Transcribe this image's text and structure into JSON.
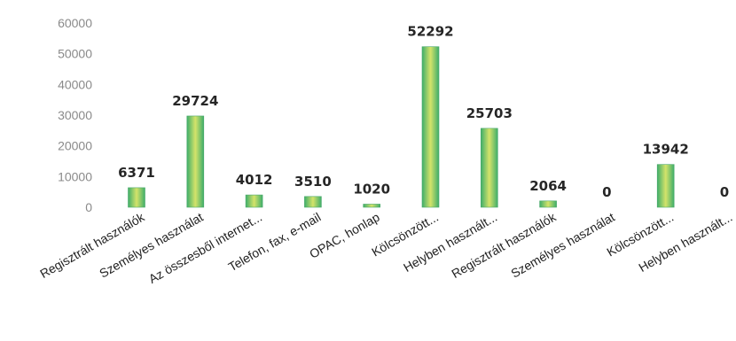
{
  "chart_data": {
    "type": "bar",
    "title": "",
    "xlabel": "",
    "ylabel": "",
    "ylim": [
      0,
      60000
    ],
    "yticks": [
      0,
      10000,
      20000,
      30000,
      40000,
      50000,
      60000
    ],
    "grid": false,
    "legend": "none",
    "categories": [
      "Regisztrált használók",
      "Személyes használat",
      "Az összesből internet...",
      "Telefon, fax, e-mail",
      "OPAC, honlap",
      "Kölcsönzött...",
      "Helyben használt...",
      "Regisztrált használók",
      "Személyes használat",
      "Kölcsönzött...",
      "Helyben használt..."
    ],
    "series": [
      {
        "values": [
          6371,
          29724,
          4012,
          3510,
          1020,
          52292,
          25703,
          2064,
          0,
          13942,
          0
        ]
      }
    ],
    "colors": {
      "bar_edge": "#3fae6a",
      "bar_center": "#d4e36a",
      "tick_text": "#8a8a8a",
      "label_text": "#262626"
    }
  }
}
